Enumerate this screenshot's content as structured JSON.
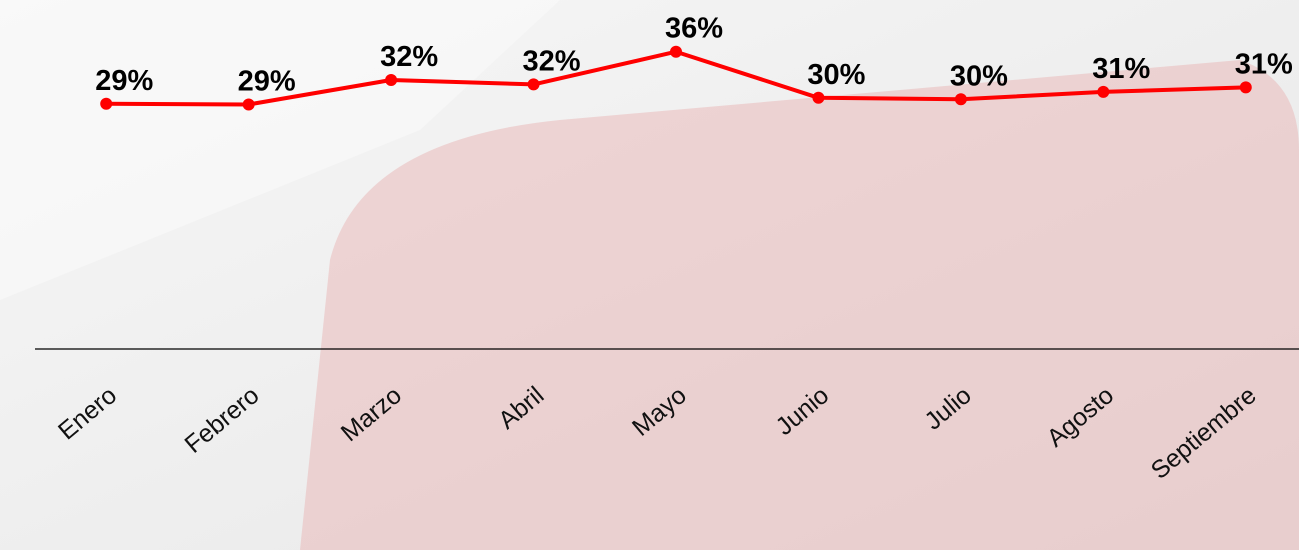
{
  "chart_data": {
    "type": "line",
    "categories": [
      "Enero",
      "Febrero",
      "Marzo",
      "Abril",
      "Mayo",
      "Junio",
      "Julio",
      "Agosto",
      "Septiembre"
    ],
    "values": [
      29.0,
      28.9,
      32.2,
      31.6,
      36.0,
      29.8,
      29.6,
      30.6,
      31.2
    ],
    "value_labels": [
      "29%",
      "29%",
      "32%",
      "32%",
      "36%",
      "30%",
      "30%",
      "31%",
      "31%"
    ],
    "color": "#ff0000",
    "ylim": [
      -4,
      40
    ]
  }
}
